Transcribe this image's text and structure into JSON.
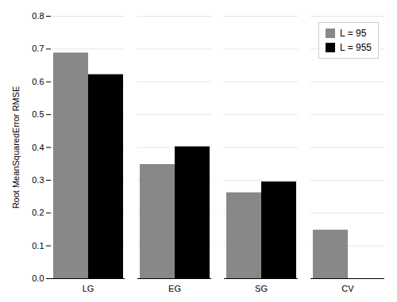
{
  "chart_data": {
    "type": "bar",
    "categories": [
      "LG",
      "EG",
      "SG",
      "CV"
    ],
    "series": [
      {
        "name": "L = 95",
        "color": "#888888",
        "values": [
          0.688,
          0.348,
          0.262,
          0.148
        ]
      },
      {
        "name": "L = 955",
        "color": "#000000",
        "values": [
          0.622,
          0.402,
          0.295,
          null
        ]
      }
    ],
    "ylabel": "Root MeanSquaredError RMSE",
    "ylim": [
      0,
      0.8
    ],
    "yticks": [
      {
        "value": 0,
        "label": "0.0"
      },
      0.1,
      0.2,
      0.3,
      0.4,
      0.5,
      0.6,
      0.7,
      0.8
    ],
    "grid": true,
    "legend": "upper right"
  }
}
